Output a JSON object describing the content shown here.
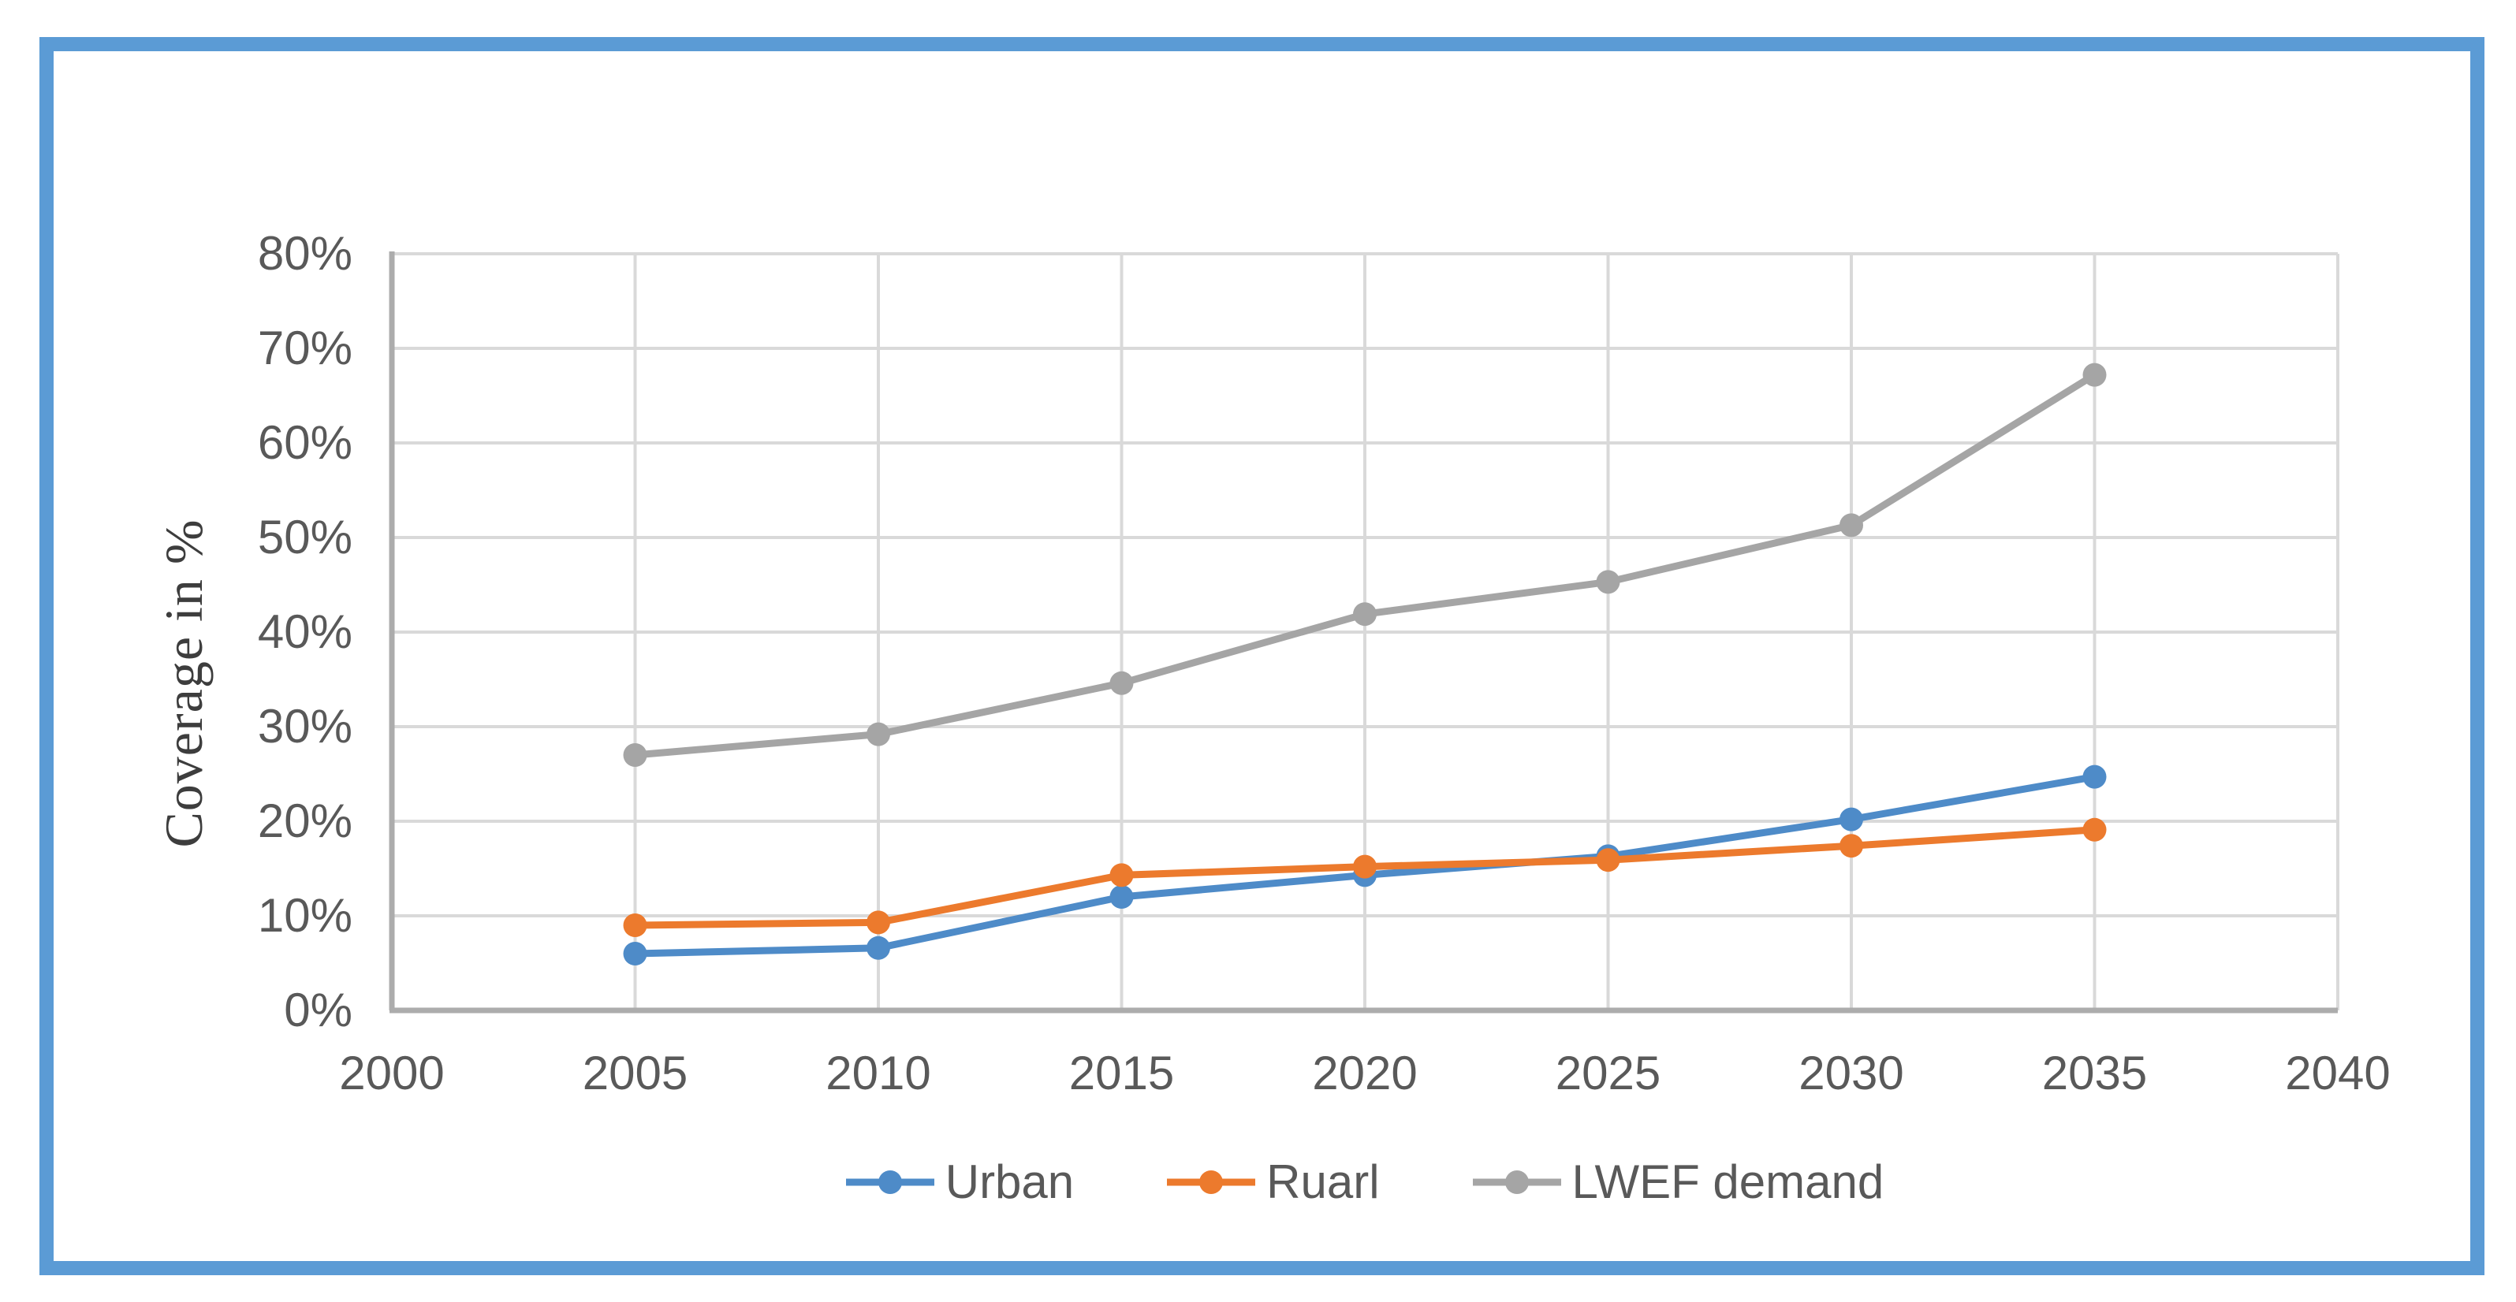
{
  "figure": {
    "frame_border_color": "#5B9BD5",
    "background_color": "#FFFFFF"
  },
  "chart_data": {
    "type": "line",
    "title": "",
    "xlabel": "",
    "ylabel": "Coverage in %",
    "x": [
      2005,
      2010,
      2015,
      2020,
      2025,
      2030,
      2035
    ],
    "series": [
      {
        "name": "Urban",
        "color": "#4E8BC8",
        "marker": "circle",
        "values": [
          6.0,
          6.6,
          12.0,
          14.3,
          16.3,
          20.2,
          24.7
        ]
      },
      {
        "name": "Ruarl",
        "color": "#EC7A2D",
        "marker": "circle",
        "values": [
          9.0,
          9.3,
          14.3,
          15.2,
          15.9,
          17.4,
          19.1
        ]
      },
      {
        "name": "LWEF demand",
        "color": "#A5A5A5",
        "marker": "circle",
        "values": [
          27.0,
          29.2,
          34.6,
          41.9,
          45.3,
          51.3,
          67.2
        ]
      }
    ],
    "xlim": [
      2000,
      2040
    ],
    "ylim": [
      0,
      80
    ],
    "x_tick_labels": [
      "2000",
      "2005",
      "2010",
      "2015",
      "2020",
      "2025",
      "2030",
      "2035",
      "2040"
    ],
    "x_tick_values": [
      2000,
      2005,
      2010,
      2015,
      2020,
      2025,
      2030,
      2035,
      2040
    ],
    "y_tick_labels": [
      "0%",
      "10%",
      "20%",
      "30%",
      "40%",
      "50%",
      "60%",
      "70%",
      "80%"
    ],
    "y_tick_values": [
      0,
      10,
      20,
      30,
      40,
      50,
      60,
      70,
      80
    ],
    "grid": true,
    "grid_color": "#D9D9D9",
    "axis_color": "#ACACAC",
    "tick_text_color": "#595959",
    "legend_position": "bottom"
  }
}
